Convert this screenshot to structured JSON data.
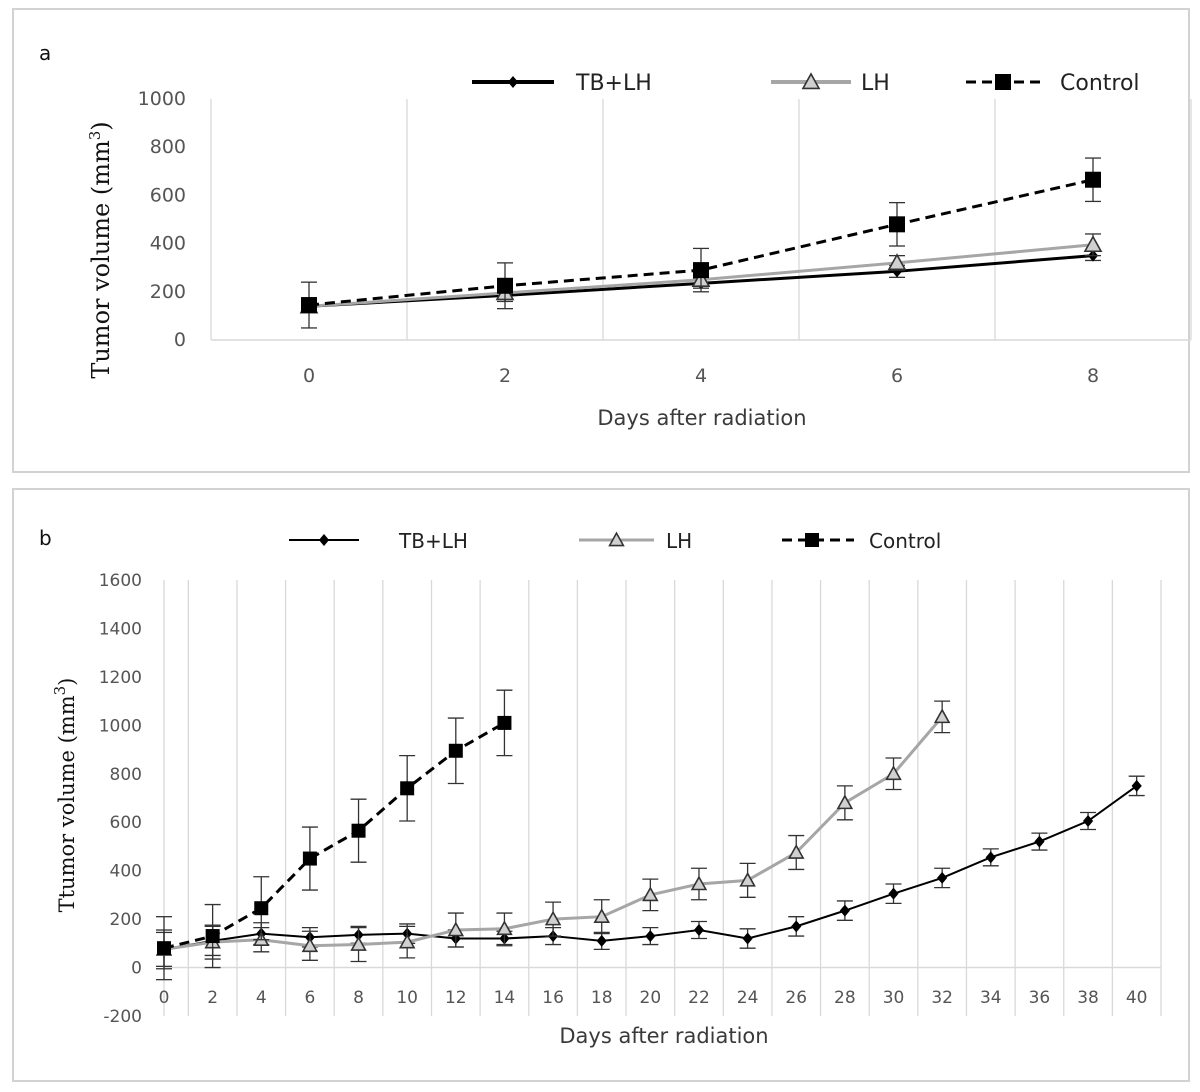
{
  "chart_data": [
    {
      "type": "line",
      "panel_label": "a",
      "xlabel": "Days after radiation",
      "ylabel": "Tumor volume (mm",
      "ylabel_sup": "3",
      "ylabel_close": ")",
      "xlim": [
        -1,
        9
      ],
      "ylim": [
        0,
        1000
      ],
      "x_ticks": [
        0,
        2,
        4,
        6,
        8
      ],
      "y_ticks": [
        0,
        200,
        400,
        600,
        800,
        1000
      ],
      "grid": "vertical",
      "legend_position": "top",
      "series": [
        {
          "name": "TB+LH",
          "color": "#000000",
          "marker": "diamond",
          "dash": "solid",
          "x": [
            0,
            2,
            4,
            6,
            8
          ],
          "y": [
            140,
            185,
            235,
            285,
            350
          ],
          "err": [
            20,
            25,
            20,
            25,
            20
          ]
        },
        {
          "name": "LH",
          "color": "#a6a6a6",
          "marker": "triangle",
          "dash": "solid",
          "x": [
            0,
            2,
            4,
            6,
            8
          ],
          "y": [
            140,
            195,
            250,
            320,
            395
          ],
          "err": [
            25,
            25,
            25,
            30,
            45
          ]
        },
        {
          "name": "Control",
          "color": "#000000",
          "marker": "square",
          "dash": "dashed",
          "x": [
            0,
            2,
            4,
            6,
            8
          ],
          "y": [
            145,
            225,
            290,
            480,
            665
          ],
          "err": [
            95,
            95,
            90,
            90,
            90
          ]
        }
      ]
    },
    {
      "type": "line",
      "panel_label": "b",
      "xlabel": "Days after radiation",
      "ylabel": "Ttumor volume (mm",
      "ylabel_sup": "3",
      "ylabel_close": ")",
      "xlim": [
        0,
        41
      ],
      "ylim": [
        -200,
        1600
      ],
      "x_ticks": [
        0,
        2,
        4,
        6,
        8,
        10,
        12,
        14,
        16,
        18,
        20,
        22,
        24,
        26,
        28,
        30,
        32,
        34,
        36,
        38,
        40
      ],
      "y_ticks": [
        -200,
        0,
        200,
        400,
        600,
        800,
        1000,
        1200,
        1400,
        1600
      ],
      "grid": "vertical",
      "legend_position": "top",
      "series": [
        {
          "name": "TB+LH",
          "color": "#000000",
          "marker": "diamond",
          "dash": "solid",
          "x": [
            0,
            2,
            4,
            6,
            8,
            10,
            12,
            14,
            16,
            18,
            20,
            22,
            24,
            26,
            28,
            30,
            32,
            34,
            36,
            38,
            40
          ],
          "y": [
            75,
            110,
            140,
            125,
            135,
            140,
            120,
            120,
            130,
            110,
            130,
            155,
            120,
            170,
            235,
            305,
            370,
            455,
            520,
            605,
            750
          ],
          "err": [
            70,
            60,
            45,
            40,
            35,
            40,
            35,
            30,
            35,
            35,
            35,
            35,
            40,
            40,
            40,
            40,
            40,
            35,
            35,
            35,
            40
          ]
        },
        {
          "name": "LH",
          "color": "#a6a6a6",
          "marker": "triangle",
          "dash": "solid",
          "x": [
            0,
            2,
            4,
            6,
            8,
            10,
            12,
            14,
            16,
            18,
            20,
            22,
            24,
            26,
            28,
            30,
            32
          ],
          "y": [
            75,
            105,
            115,
            90,
            95,
            105,
            155,
            160,
            200,
            210,
            300,
            345,
            360,
            475,
            680,
            800,
            1035
          ],
          "err": [
            80,
            70,
            50,
            60,
            70,
            65,
            70,
            65,
            70,
            70,
            65,
            65,
            70,
            70,
            70,
            65,
            65
          ]
        },
        {
          "name": "Control",
          "color": "#000000",
          "marker": "square",
          "dash": "dashed",
          "x": [
            0,
            2,
            4,
            6,
            8,
            10,
            12,
            14
          ],
          "y": [
            80,
            130,
            245,
            450,
            565,
            740,
            895,
            1010
          ],
          "err": [
            130,
            130,
            130,
            130,
            130,
            135,
            135,
            135
          ]
        }
      ]
    }
  ]
}
